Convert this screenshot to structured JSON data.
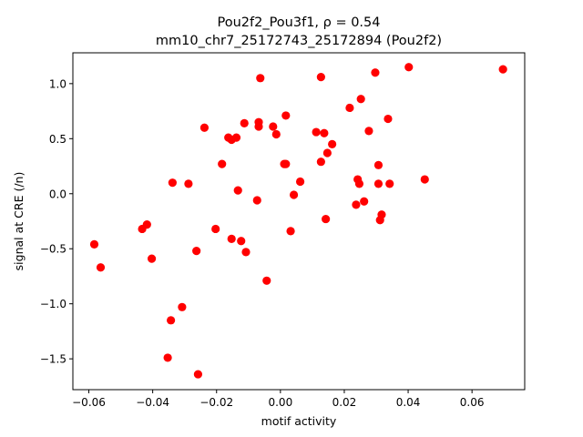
{
  "chart_data": {
    "type": "scatter",
    "title_line1": "Pou2f2_Pou3f1, ρ = 0.54",
    "title_line2": "mm10_chr7_25172743_25172894 (Pou2f2)",
    "xlabel": "motif activity",
    "ylabel": "signal at CRE (/n)",
    "xlim": [
      -0.065,
      0.0765
    ],
    "ylim": [
      -1.78,
      1.28
    ],
    "xticks": [
      -0.06,
      -0.04,
      -0.02,
      0.0,
      0.02,
      0.04,
      0.06
    ],
    "xtick_labels": [
      "−0.06",
      "−0.04",
      "−0.02",
      "0.00",
      "0.02",
      "0.04",
      "0.06"
    ],
    "yticks": [
      -1.5,
      -1.0,
      -0.5,
      0.0,
      0.5,
      1.0
    ],
    "ytick_labels": [
      "−1.5",
      "−1.0",
      "−0.5",
      "0.0",
      "0.5",
      "1.0"
    ],
    "grid": false,
    "marker_color": "#ff0000",
    "points": [
      [
        -0.0583,
        -0.46
      ],
      [
        -0.0563,
        -0.67
      ],
      [
        -0.0433,
        -0.32
      ],
      [
        -0.0418,
        -0.28
      ],
      [
        -0.0403,
        -0.59
      ],
      [
        -0.0343,
        -1.15
      ],
      [
        -0.0338,
        0.1
      ],
      [
        -0.0353,
        -1.49
      ],
      [
        -0.0308,
        -1.03
      ],
      [
        -0.0288,
        0.09
      ],
      [
        -0.0263,
        -0.52
      ],
      [
        -0.0258,
        -1.64
      ],
      [
        -0.0238,
        0.6
      ],
      [
        -0.0203,
        -0.32
      ],
      [
        -0.0183,
        0.27
      ],
      [
        -0.0163,
        0.51
      ],
      [
        -0.0153,
        0.49
      ],
      [
        -0.0153,
        -0.41
      ],
      [
        -0.0138,
        0.51
      ],
      [
        -0.0133,
        0.03
      ],
      [
        -0.0123,
        -0.43
      ],
      [
        -0.0113,
        0.64
      ],
      [
        -0.0108,
        -0.53
      ],
      [
        -0.0073,
        -0.06
      ],
      [
        -0.0068,
        0.65
      ],
      [
        -0.0068,
        0.61
      ],
      [
        -0.0063,
        1.05
      ],
      [
        -0.0043,
        -0.79
      ],
      [
        -0.0023,
        0.61
      ],
      [
        -0.0013,
        0.54
      ],
      [
        0.0012,
        0.27
      ],
      [
        0.0017,
        0.27
      ],
      [
        0.0017,
        0.71
      ],
      [
        0.0032,
        -0.34
      ],
      [
        0.0042,
        -0.01
      ],
      [
        0.0062,
        0.11
      ],
      [
        0.0112,
        0.56
      ],
      [
        0.0127,
        0.29
      ],
      [
        0.0127,
        1.06
      ],
      [
        0.0137,
        0.55
      ],
      [
        0.0142,
        -0.23
      ],
      [
        0.0147,
        0.37
      ],
      [
        0.0162,
        0.45
      ],
      [
        0.0217,
        0.78
      ],
      [
        0.0237,
        -0.1
      ],
      [
        0.0242,
        0.13
      ],
      [
        0.0247,
        0.09
      ],
      [
        0.0252,
        0.86
      ],
      [
        0.0262,
        -0.07
      ],
      [
        0.0277,
        0.57
      ],
      [
        0.0297,
        1.1
      ],
      [
        0.0307,
        0.26
      ],
      [
        0.0307,
        0.09
      ],
      [
        0.0312,
        -0.24
      ],
      [
        0.0317,
        -0.19
      ],
      [
        0.0337,
        0.68
      ],
      [
        0.0342,
        0.09
      ],
      [
        0.0402,
        1.15
      ],
      [
        0.0452,
        0.13
      ],
      [
        0.0697,
        1.13
      ]
    ]
  }
}
